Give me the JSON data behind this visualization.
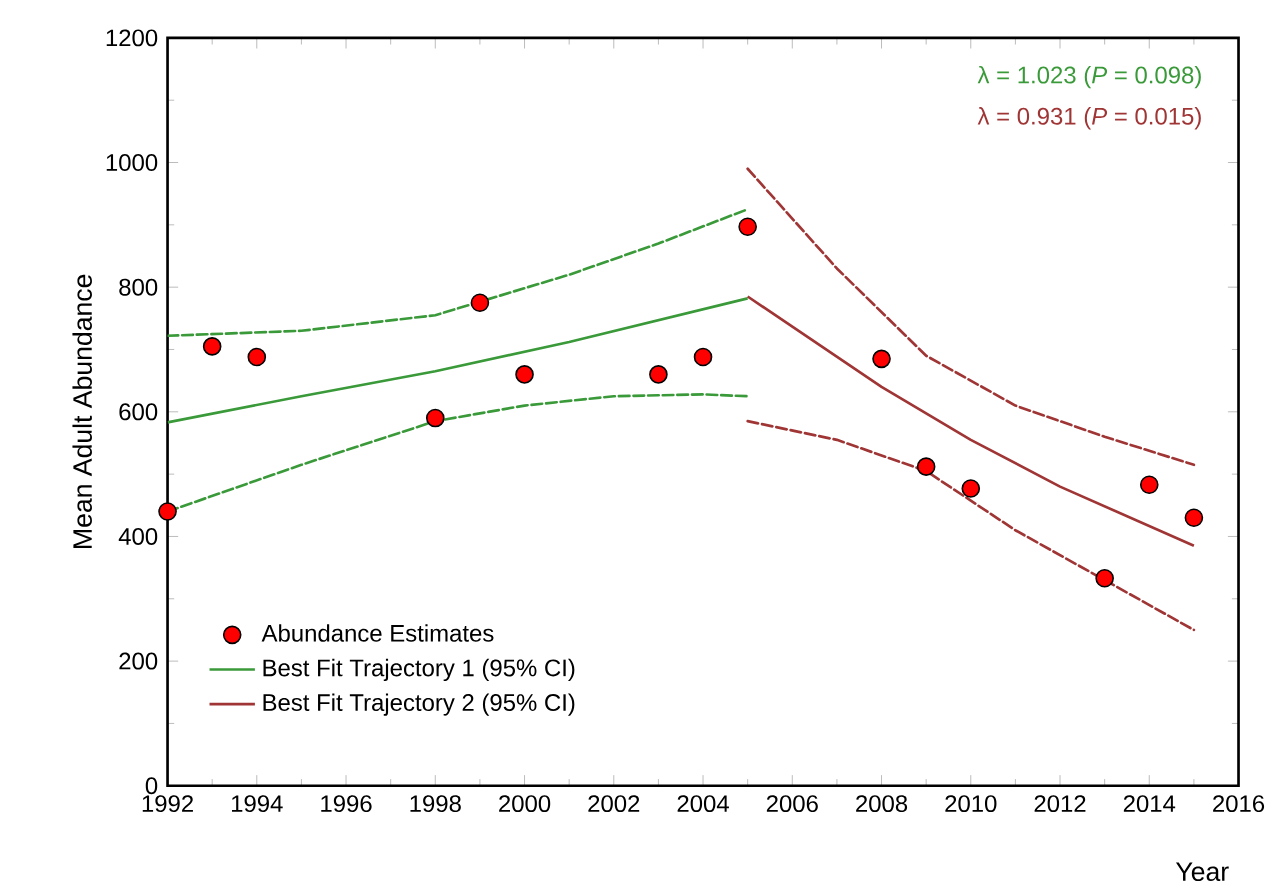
{
  "chart_data": {
    "type": "line",
    "xlabel": "Year",
    "ylabel": "Mean Adult Abundance",
    "xlim": [
      1992,
      2016
    ],
    "xticks": [
      1992,
      1994,
      1996,
      1998,
      2000,
      2002,
      2004,
      2006,
      2008,
      2010,
      2012,
      2014,
      2016
    ],
    "ylim": [
      0,
      1200
    ],
    "yticks": [
      0,
      200,
      400,
      600,
      800,
      1000,
      1200
    ],
    "grid": false,
    "legend": "bottom left",
    "annotations": [
      "λ = 1.023 (*P* = 0.098)",
      "λ = 0.931 (*P* = 0.015)"
    ],
    "series": [
      {
        "name": "Abundance Estimates",
        "type": "scatter",
        "marker": "circle",
        "color": "#ff0000",
        "x": [
          1992,
          1993,
          1994,
          1998,
          1999,
          2000,
          2003,
          2004,
          2005,
          2008,
          2009,
          2010,
          2013,
          2014,
          2015
        ],
        "values": [
          440,
          705,
          688,
          590,
          775,
          660,
          660,
          688,
          897,
          685,
          512,
          477,
          333,
          483,
          430
        ]
      },
      {
        "name": "Best Fit Trajectory 1 (95% CI)",
        "line_style": "solid",
        "color": "#3a9a3a",
        "x": [
          1992,
          1995,
          1998,
          2001,
          2005
        ],
        "values": [
          583,
          625,
          665,
          712,
          782
        ]
      },
      {
        "name": "Best Fit Trajectory 2 (95% CI)",
        "line_style": "solid",
        "color": "#a03535",
        "x": [
          2005,
          2008,
          2010,
          2012,
          2015
        ],
        "values": [
          785,
          640,
          555,
          480,
          385
        ]
      },
      {
        "line_style": "dashed",
        "color": "#3a9a3a",
        "x": [
          1992,
          1995,
          1998,
          2001,
          2003,
          2005
        ],
        "values": [
          722,
          730,
          755,
          820,
          870,
          925
        ]
      },
      {
        "line_style": "dashed",
        "color": "#3a9a3a",
        "x": [
          1992,
          1995,
          1998,
          2000,
          2002,
          2004,
          2005
        ],
        "values": [
          440,
          515,
          585,
          610,
          625,
          628,
          625
        ]
      },
      {
        "line_style": "dashed",
        "color": "#a03535",
        "x": [
          2005,
          2007,
          2009,
          2011,
          2013,
          2015
        ],
        "values": [
          990,
          830,
          690,
          610,
          560,
          515
        ]
      },
      {
        "line_style": "dashed",
        "color": "#a03535",
        "x": [
          2005,
          2007,
          2009,
          2011,
          2013,
          2015
        ],
        "values": [
          585,
          555,
          505,
          410,
          330,
          250
        ]
      }
    ]
  }
}
